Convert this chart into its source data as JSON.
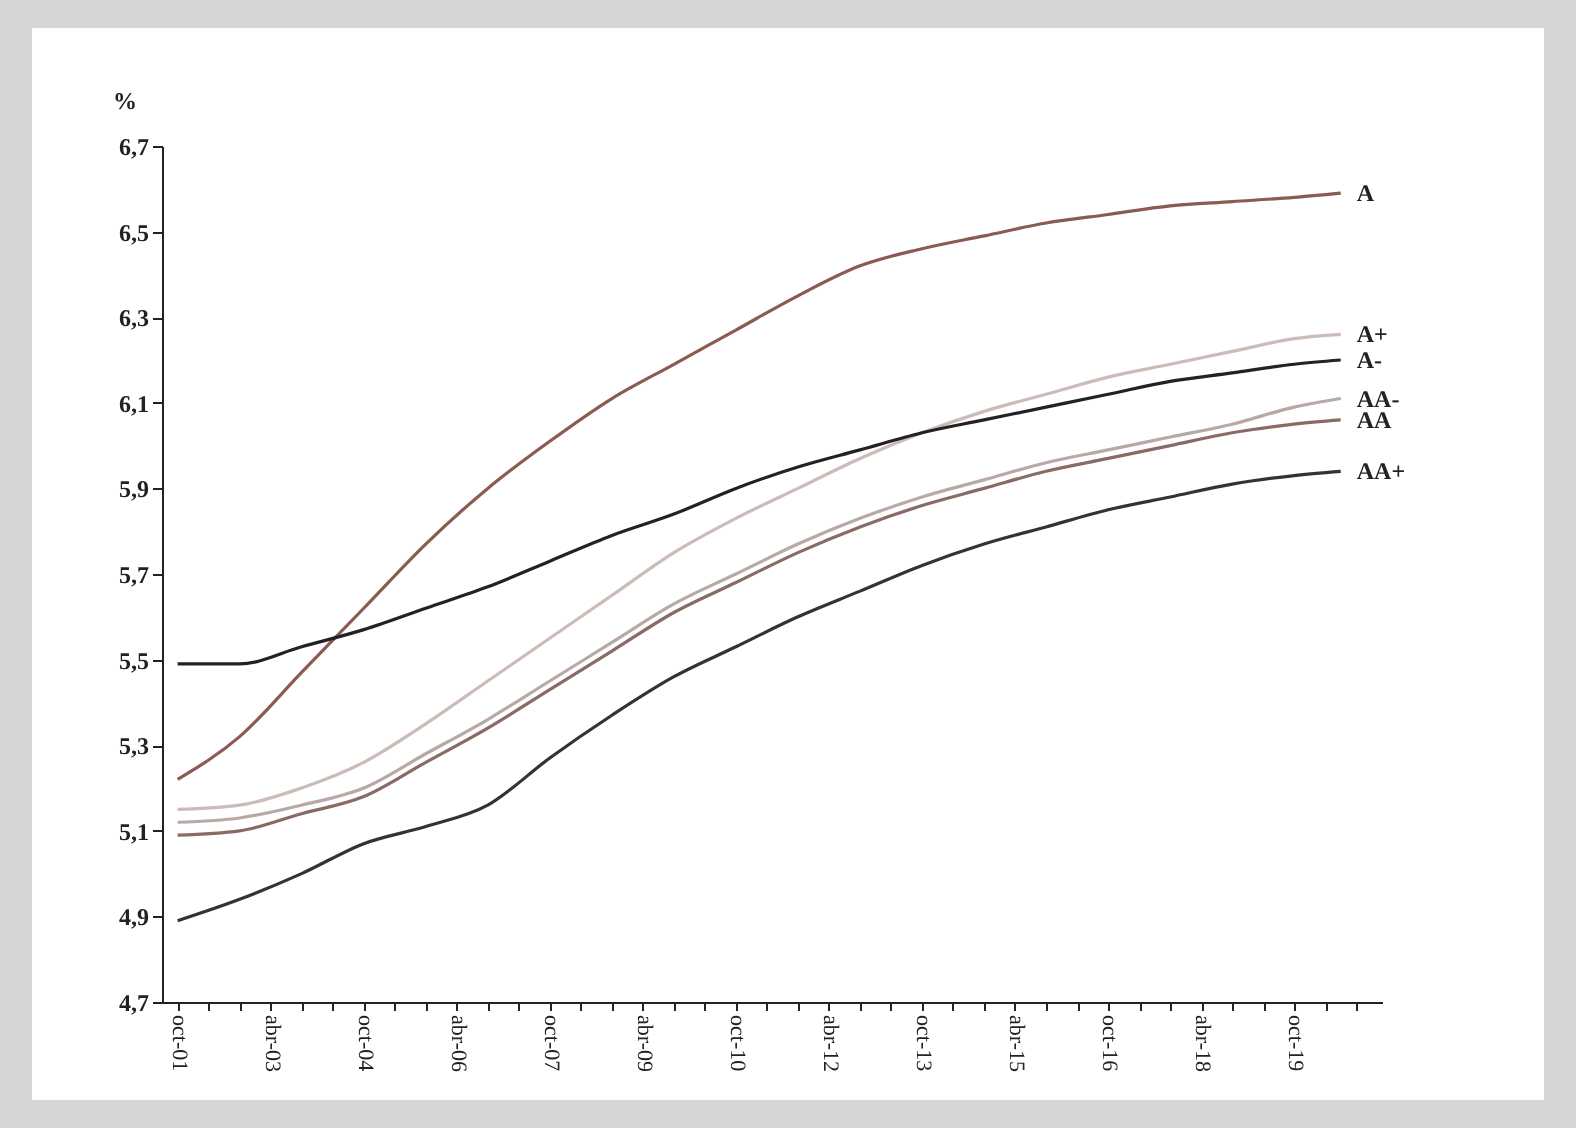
{
  "chart_data": {
    "type": "line",
    "ylabel": "%",
    "x": [
      "2001-10",
      "2002-10",
      "2003-10",
      "2004-10",
      "2005-10",
      "2006-10",
      "2007-10",
      "2008-10",
      "2009-10",
      "2010-10",
      "2011-10",
      "2012-10",
      "2013-10",
      "2014-10",
      "2015-10",
      "2016-10",
      "2017-10",
      "2018-10",
      "2019-10",
      "2020-07"
    ],
    "series": [
      {
        "name": "A",
        "color": "#8b5a50",
        "values": [
          5.22,
          5.32,
          5.47,
          5.62,
          5.77,
          5.9,
          6.01,
          6.11,
          6.19,
          6.27,
          6.35,
          6.42,
          6.46,
          6.49,
          6.52,
          6.54,
          6.56,
          6.57,
          6.58,
          6.59
        ]
      },
      {
        "name": "A+",
        "color": "#cbbcb8",
        "values": [
          5.15,
          5.16,
          5.2,
          5.26,
          5.35,
          5.45,
          5.55,
          5.65,
          5.75,
          5.83,
          5.9,
          5.97,
          6.03,
          6.08,
          6.12,
          6.16,
          6.19,
          6.22,
          6.25,
          6.26
        ]
      },
      {
        "name": "A-",
        "color": "#222222",
        "values": [
          5.49,
          5.49,
          5.53,
          5.57,
          5.62,
          5.67,
          5.73,
          5.79,
          5.84,
          5.9,
          5.95,
          5.99,
          6.03,
          6.06,
          6.09,
          6.12,
          6.15,
          6.17,
          6.19,
          6.2
        ]
      },
      {
        "name": "AA-",
        "color": "#b9a9a5",
        "values": [
          5.12,
          5.13,
          5.16,
          5.2,
          5.28,
          5.36,
          5.45,
          5.54,
          5.63,
          5.7,
          5.77,
          5.83,
          5.88,
          5.92,
          5.96,
          5.99,
          6.02,
          6.05,
          6.09,
          6.11
        ]
      },
      {
        "name": "AA",
        "color": "#8a6a64",
        "values": [
          5.09,
          5.1,
          5.14,
          5.18,
          5.26,
          5.34,
          5.43,
          5.52,
          5.61,
          5.68,
          5.75,
          5.81,
          5.86,
          5.9,
          5.94,
          5.97,
          6.0,
          6.03,
          6.05,
          6.06
        ]
      },
      {
        "name": "AA+",
        "color": "#333333",
        "values": [
          4.89,
          4.94,
          5.0,
          5.07,
          5.11,
          5.16,
          5.27,
          5.37,
          5.46,
          5.53,
          5.6,
          5.66,
          5.72,
          5.77,
          5.81,
          5.85,
          5.88,
          5.91,
          5.93,
          5.94
        ]
      }
    ],
    "xlim": [
      "2001-07",
      "2021-03"
    ],
    "xticks": [
      {
        "value": "2001-10",
        "label": "oct-01"
      },
      {
        "value": "2002-04",
        "label": null
      },
      {
        "value": "2002-10",
        "label": null
      },
      {
        "value": "2003-04",
        "label": "abr-03"
      },
      {
        "value": "2003-10",
        "label": null
      },
      {
        "value": "2004-04",
        "label": null
      },
      {
        "value": "2004-10",
        "label": "oct-04"
      },
      {
        "value": "2005-04",
        "label": null
      },
      {
        "value": "2005-10",
        "label": null
      },
      {
        "value": "2006-04",
        "label": "abr-06"
      },
      {
        "value": "2006-10",
        "label": null
      },
      {
        "value": "2007-04",
        "label": null
      },
      {
        "value": "2007-10",
        "label": "oct-07"
      },
      {
        "value": "2008-04",
        "label": null
      },
      {
        "value": "2008-10",
        "label": null
      },
      {
        "value": "2009-04",
        "label": "abr-09"
      },
      {
        "value": "2009-10",
        "label": null
      },
      {
        "value": "2010-04",
        "label": null
      },
      {
        "value": "2010-10",
        "label": "oct-10"
      },
      {
        "value": "2011-04",
        "label": null
      },
      {
        "value": "2011-10",
        "label": null
      },
      {
        "value": "2012-04",
        "label": "abr-12"
      },
      {
        "value": "2012-10",
        "label": null
      },
      {
        "value": "2013-04",
        "label": null
      },
      {
        "value": "2013-10",
        "label": "oct-13"
      },
      {
        "value": "2014-04",
        "label": null
      },
      {
        "value": "2014-10",
        "label": null
      },
      {
        "value": "2015-04",
        "label": "abr-15"
      },
      {
        "value": "2015-10",
        "label": null
      },
      {
        "value": "2016-04",
        "label": null
      },
      {
        "value": "2016-10",
        "label": "oct-16"
      },
      {
        "value": "2017-04",
        "label": null
      },
      {
        "value": "2017-10",
        "label": null
      },
      {
        "value": "2018-04",
        "label": "abr-18"
      },
      {
        "value": "2018-10",
        "label": null
      },
      {
        "value": "2019-04",
        "label": null
      },
      {
        "value": "2019-10",
        "label": "oct-19"
      },
      {
        "value": "2020-04",
        "label": null
      },
      {
        "value": "2020-10",
        "label": null
      }
    ],
    "ylim": [
      4.7,
      6.7
    ],
    "yticks": [
      {
        "value": 4.7,
        "label": "4,7"
      },
      {
        "value": 4.9,
        "label": "4,9"
      },
      {
        "value": 5.1,
        "label": "5,1"
      },
      {
        "value": 5.3,
        "label": "5,3"
      },
      {
        "value": 5.5,
        "label": "5,5"
      },
      {
        "value": 5.7,
        "label": "5,7"
      },
      {
        "value": 5.9,
        "label": "5,9"
      },
      {
        "value": 6.1,
        "label": "6,1"
      },
      {
        "value": 6.3,
        "label": "6,3"
      },
      {
        "value": 6.5,
        "label": "6,5"
      },
      {
        "value": 6.7,
        "label": "6,7"
      }
    ],
    "grid": false,
    "legend": false,
    "marker": "none",
    "line_style": "solid"
  }
}
